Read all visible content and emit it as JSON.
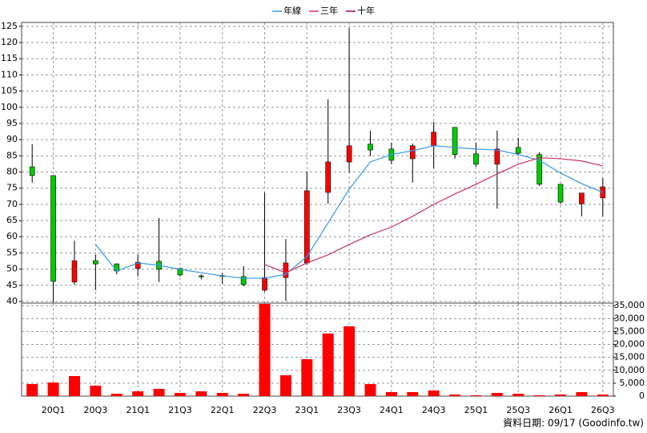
{
  "chart_data": [
    {
      "type": "candlestick",
      "legend": "top",
      "grid": true,
      "ylim": [
        39.5,
        126.2
      ],
      "yticks": [
        40,
        45,
        50,
        55,
        60,
        65,
        70,
        75,
        80,
        85,
        90,
        95,
        100,
        105,
        110,
        115,
        120,
        125
      ],
      "up_color": "#ff0000",
      "down_color": "#00cc00",
      "candles": {
        "open": [
          81.6,
          78.9,
          46.0,
          52.6,
          51.6,
          50.2,
          52.4,
          50.2,
          47.9,
          48.0,
          47.7,
          43.5,
          47.4,
          51.9,
          73.7,
          83.1,
          88.6,
          87.1,
          84.1,
          88.1,
          93.8,
          85.6,
          82.4,
          87.6,
          85.4,
          76.2,
          70.2,
          72.0
        ],
        "high": [
          88.6,
          79.0,
          58.8,
          54.4,
          51.8,
          54.4,
          65.8,
          50.2,
          48.4,
          48.8,
          50.9,
          73.7,
          59.3,
          80.1,
          102.5,
          124.5,
          92.8,
          89.1,
          88.8,
          95.5,
          93.8,
          89.1,
          92.8,
          90.6,
          86.1,
          76.2,
          73.5,
          78.2
        ],
        "low": [
          76.7,
          39.8,
          45.2,
          43.5,
          48.4,
          47.7,
          46.0,
          47.7,
          46.8,
          45.5,
          44.7,
          43.0,
          40.2,
          51.4,
          70.2,
          79.9,
          84.9,
          82.4,
          76.7,
          81.1,
          84.1,
          81.6,
          68.7,
          85.4,
          75.7,
          70.2,
          66.3,
          66.3
        ],
        "close": [
          78.9,
          46.2,
          52.6,
          51.6,
          49.4,
          52.1,
          49.9,
          48.2,
          47.7,
          47.8,
          45.2,
          47.4,
          51.9,
          74.2,
          83.1,
          88.1,
          86.8,
          83.6,
          88.1,
          92.3,
          85.4,
          82.4,
          87.1,
          85.8,
          76.2,
          70.7,
          73.5,
          75.4
        ]
      },
      "series": [
        {
          "name": "年線",
          "color": "#3399ee",
          "values": [
            null,
            null,
            null,
            57.6,
            49.4,
            51.9,
            51.2,
            49.9,
            48.9,
            47.9,
            47.2,
            47.2,
            48.4,
            53.9,
            64.3,
            74.7,
            83.1,
            85.4,
            86.6,
            88.1,
            87.6,
            87.1,
            86.8,
            85.4,
            83.6,
            79.7,
            76.4,
            73.7
          ]
        },
        {
          "name": "三年",
          "color": "#cc3366",
          "values": [
            null,
            null,
            null,
            null,
            null,
            null,
            null,
            null,
            null,
            null,
            null,
            51.4,
            48.9,
            51.9,
            54.4,
            57.6,
            60.6,
            63.0,
            66.3,
            70.0,
            73.2,
            76.2,
            79.4,
            82.4,
            84.4,
            84.1,
            83.4,
            81.9
          ]
        },
        {
          "name": "十年",
          "color": "#990066",
          "values": [
            null,
            null,
            null,
            null,
            null,
            null,
            null,
            null,
            null,
            null,
            null,
            null,
            null,
            null,
            null,
            null,
            null,
            null,
            null,
            null,
            null,
            null,
            null,
            null,
            null,
            null,
            null,
            null
          ]
        }
      ]
    },
    {
      "type": "bar",
      "grid": true,
      "color": "#ff0000",
      "categories": [
        null,
        "20Q1",
        null,
        "20Q3",
        null,
        "21Q1",
        null,
        "21Q3",
        null,
        "22Q1",
        null,
        "22Q3",
        null,
        "23Q1",
        null,
        "23Q3",
        null,
        "24Q1",
        null,
        "24Q3",
        null,
        "25Q1",
        null,
        "25Q3",
        null,
        "26Q1",
        null,
        "26Q3"
      ],
      "values": [
        4660,
        5280,
        7760,
        4040,
        930,
        1860,
        2800,
        1240,
        1860,
        1240,
        930,
        35700,
        8080,
        14290,
        24230,
        27020,
        4660,
        1550,
        1550,
        2170,
        620,
        310,
        1240,
        930,
        310,
        620,
        1550,
        620
      ],
      "ylim": [
        0,
        36000
      ],
      "yticks": [
        0,
        {
          "value": 5000,
          "label": "5,000"
        },
        {
          "value": 10000,
          "label": "10,000"
        },
        {
          "value": 15000,
          "label": "15,000"
        },
        {
          "value": 20000,
          "label": "20,000"
        },
        {
          "value": 25000,
          "label": "25,000"
        },
        {
          "value": 30000,
          "label": "30,000"
        },
        {
          "value": 35000,
          "label": "35,000"
        }
      ]
    }
  ],
  "footnote": "資料日期: 09/17 (Goodinfo.tw)"
}
